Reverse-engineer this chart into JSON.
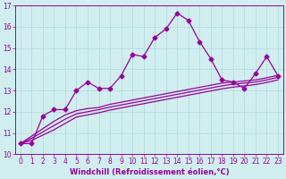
{
  "xlabel": "Windchill (Refroidissement éolien,°C)",
  "ylabel": "",
  "background_color": "#d0eef0",
  "line_color": "#990099",
  "x": [
    0,
    1,
    2,
    3,
    4,
    5,
    6,
    7,
    8,
    9,
    10,
    11,
    12,
    13,
    14,
    15,
    16,
    17,
    18,
    19,
    20,
    21,
    22,
    23
  ],
  "y_main": [
    10.5,
    10.5,
    11.8,
    12.1,
    12.1,
    13.0,
    13.4,
    13.1,
    13.1,
    13.7,
    14.7,
    14.6,
    15.5,
    15.9,
    16.65,
    16.3,
    15.3,
    14.5,
    13.5,
    13.4,
    13.1,
    13.8,
    14.6,
    13.7
  ],
  "y_line1": [
    10.5,
    10.85,
    11.2,
    11.55,
    11.85,
    12.05,
    12.15,
    12.2,
    12.35,
    12.45,
    12.55,
    12.65,
    12.75,
    12.85,
    12.95,
    13.05,
    13.15,
    13.25,
    13.35,
    13.4,
    13.45,
    13.5,
    13.6,
    13.72
  ],
  "y_line2": [
    10.5,
    10.75,
    11.05,
    11.35,
    11.65,
    11.9,
    12.0,
    12.1,
    12.22,
    12.32,
    12.42,
    12.52,
    12.62,
    12.72,
    12.82,
    12.92,
    13.02,
    13.12,
    13.22,
    13.3,
    13.35,
    13.4,
    13.5,
    13.62
  ],
  "y_line3": [
    10.5,
    10.65,
    10.9,
    11.15,
    11.45,
    11.75,
    11.85,
    11.95,
    12.08,
    12.18,
    12.28,
    12.38,
    12.48,
    12.58,
    12.68,
    12.78,
    12.88,
    12.98,
    13.08,
    13.16,
    13.22,
    13.28,
    13.38,
    13.5
  ],
  "ylim": [
    10,
    17
  ],
  "xlim": [
    -0.5,
    23.5
  ],
  "yticks": [
    10,
    11,
    12,
    13,
    14,
    15,
    16,
    17
  ],
  "xticks": [
    0,
    1,
    2,
    3,
    4,
    5,
    6,
    7,
    8,
    9,
    10,
    11,
    12,
    13,
    14,
    15,
    16,
    17,
    18,
    19,
    20,
    21,
    22,
    23
  ],
  "grid_color": "#b0d8da",
  "marker": "D",
  "markersize": 2.5,
  "linewidth": 0.9,
  "xlabel_fontsize": 6,
  "tick_fontsize": 5.5
}
